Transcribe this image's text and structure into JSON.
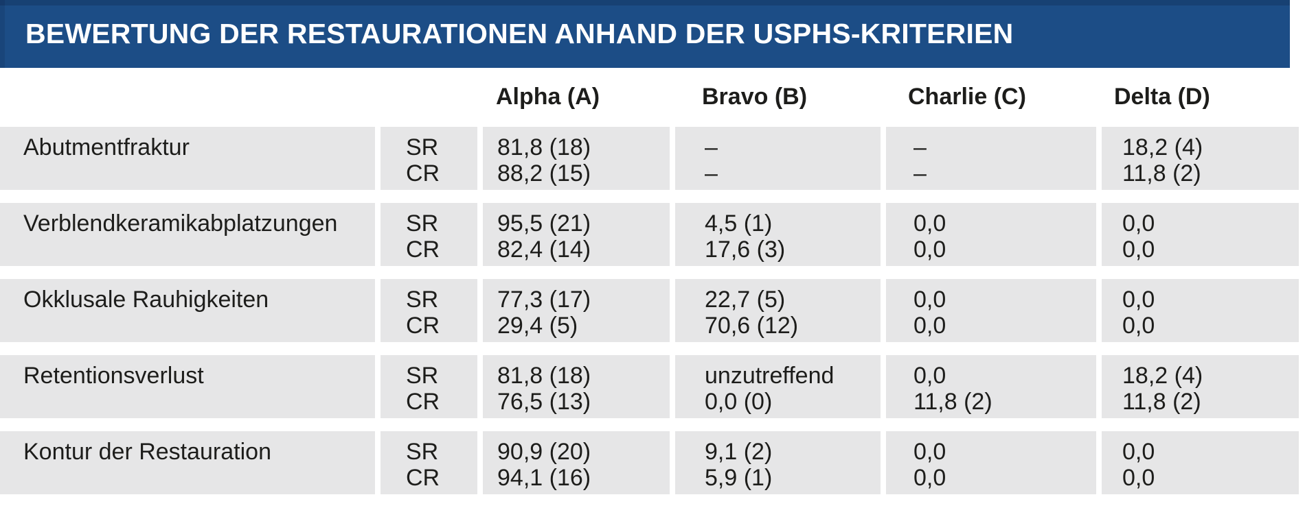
{
  "title_bar": {
    "title": "BEWERTUNG DER RESTAURATIONEN ANHAND DER USPHS-KRITERIEN"
  },
  "columns": {
    "alpha": "Alpha (A)",
    "bravo": "Bravo (B)",
    "charlie": "Charlie (C)",
    "delta": "Delta (D)"
  },
  "rating_labels": {
    "sr": "SR",
    "cr": "CR"
  },
  "colors": {
    "header_bar": "#1c4d86",
    "header_bar_edge": "#153e6c",
    "row_band": "#e6e6e7",
    "title_text": "#ffffff",
    "body_text": "#1d1d1b"
  },
  "rows": [
    {
      "criterion": "Abutmentfraktur",
      "sr": {
        "alpha": "81,8 (18)",
        "bravo": "–",
        "charlie": "–",
        "delta": "18,2 (4)"
      },
      "cr": {
        "alpha": "88,2 (15)",
        "bravo": "–",
        "charlie": "–",
        "delta": "11,8 (2)"
      }
    },
    {
      "criterion": "Verblendkeramikabplatzungen",
      "sr": {
        "alpha": "95,5 (21)",
        "bravo": "4,5 (1)",
        "charlie": "0,0",
        "delta": "0,0"
      },
      "cr": {
        "alpha": "82,4 (14)",
        "bravo": "17,6 (3)",
        "charlie": "0,0",
        "delta": "0,0"
      }
    },
    {
      "criterion": "Okklusale Rauhigkeiten",
      "sr": {
        "alpha": "77,3 (17)",
        "bravo": "22,7 (5)",
        "charlie": "0,0",
        "delta": "0,0"
      },
      "cr": {
        "alpha": "29,4 (5)",
        "bravo": "70,6 (12)",
        "charlie": "0,0",
        "delta": "0,0"
      }
    },
    {
      "criterion": "Retentionsverlust",
      "sr": {
        "alpha": "81,8 (18)",
        "bravo": "unzutreffend",
        "charlie": "0,0",
        "delta": "18,2 (4)"
      },
      "cr": {
        "alpha": "76,5 (13)",
        "bravo": "0,0 (0)",
        "charlie": "11,8 (2)",
        "delta": "11,8 (2)"
      }
    },
    {
      "criterion": "Kontur der Restauration",
      "sr": {
        "alpha": "90,9 (20)",
        "bravo": "9,1 (2)",
        "charlie": "0,0",
        "delta": "0,0"
      },
      "cr": {
        "alpha": "94,1 (16)",
        "bravo": "5,9 (1)",
        "charlie": "0,0",
        "delta": "0,0"
      }
    }
  ]
}
